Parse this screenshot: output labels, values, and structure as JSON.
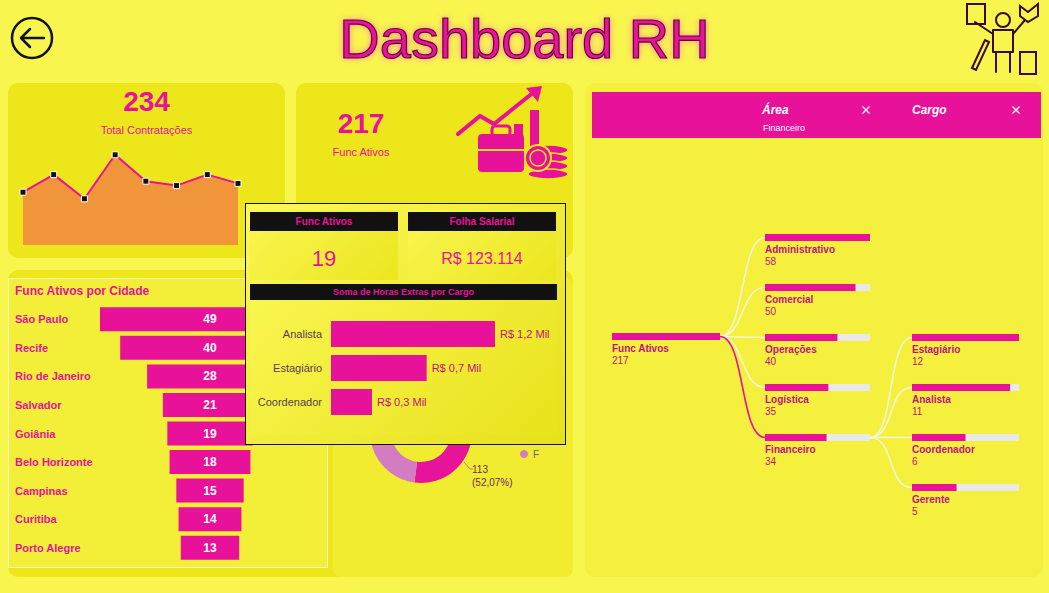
{
  "header": {
    "title": "Dashboard RH"
  },
  "cards": [
    {
      "value": "234",
      "label": "Total Contratações"
    },
    {
      "value": "217",
      "label": "Func Ativos"
    }
  ],
  "tooltip": {
    "cards": [
      {
        "title": "Func Ativos",
        "value": "19"
      },
      {
        "title": "Folha Salarial",
        "value": "R$ 123.114"
      }
    ]
  },
  "decomposition_tree": {
    "header": [
      {
        "label": "Área",
        "filter": "Financeiro"
      },
      {
        "label": "Cargo"
      }
    ],
    "root": {
      "label": "Func Ativos",
      "value": 217
    },
    "levels": [
      {
        "expanded": "Financeiro",
        "nodes": [
          {
            "label": "Administrativo",
            "value": 58
          },
          {
            "label": "Comercial",
            "value": 50
          },
          {
            "label": "Operações",
            "value": 40
          },
          {
            "label": "Logística",
            "value": 35
          },
          {
            "label": "Financeiro",
            "value": 34
          }
        ]
      },
      {
        "nodes": [
          {
            "label": "Estagiário",
            "value": 12
          },
          {
            "label": "Analista",
            "value": 11
          },
          {
            "label": "Coordenador",
            "value": 6
          },
          {
            "label": "Gerente",
            "value": 5
          }
        ]
      }
    ],
    "color": "#e8119a"
  },
  "chart_data": [
    {
      "type": "area",
      "categories": [
        null,
        null,
        null,
        null,
        null,
        null,
        null,
        null
      ],
      "values": [
        24,
        32,
        21,
        41,
        29,
        27,
        32,
        28
      ],
      "color": "#f0953a",
      "marker": "square",
      "ylim": [
        0,
        45
      ],
      "tick_labels": false
    },
    {
      "type": "funnel",
      "title": "Func Ativos por Cidade",
      "categories": [
        "São Paulo",
        "Recife",
        "Rio de Janeiro",
        "Salvador",
        "Goiânia",
        "Belo Horizonte",
        "Campinas",
        "Curitiba",
        "Porto Alegre"
      ],
      "values": [
        49,
        40,
        28,
        21,
        19,
        18,
        15,
        14,
        13
      ],
      "color": "#e8119a",
      "data_labels": true
    },
    {
      "type": "donut",
      "categories": [
        null,
        "F"
      ],
      "values": [
        113,
        104
      ],
      "colors": [
        "#e8139b",
        "#d47cc2"
      ],
      "value_labels": [
        "113 (52,07%)",
        null
      ],
      "data_labels": true,
      "legend": "right"
    },
    {
      "type": "bar",
      "orientation": "horizontal",
      "title": "Soma de Horas Extras por Cargo",
      "categories": [
        "Analista",
        "Estagiário",
        "Coordenador"
      ],
      "values": [
        1200,
        700,
        300
      ],
      "value_labels": [
        "R$ 1,2 Mil",
        "R$ 0,7 Mil",
        "R$ 0,3 Mil"
      ],
      "color": "#e8119a",
      "data_labels": true,
      "xlim": [
        0,
        1500
      ],
      "tick_labels": "y"
    }
  ]
}
